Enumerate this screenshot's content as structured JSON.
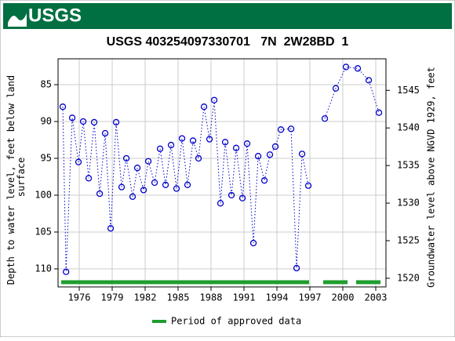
{
  "header": {
    "logo_text": "USGS"
  },
  "chart_data": {
    "type": "line",
    "title": "USGS 403254097330701   7N  2W28BD  1",
    "ylabel": [
      "Depth to water level, feet below land",
      "surface"
    ],
    "y2label": "Groundwater level above NGVD 1929, feet",
    "x": [
      1974.5,
      1974.8,
      1975.36,
      1975.93,
      1976.36,
      1976.86,
      1977.36,
      1977.86,
      1978.36,
      1978.86,
      1979.36,
      1979.86,
      1980.29,
      1980.86,
      1981.29,
      1981.86,
      1982.29,
      1982.86,
      1983.36,
      1983.86,
      1984.36,
      1984.86,
      1985.36,
      1985.86,
      1986.36,
      1986.86,
      1987.36,
      1987.86,
      1988.29,
      1988.86,
      1989.29,
      1989.86,
      1990.29,
      1990.86,
      1991.29,
      1991.86,
      1992.29,
      1992.86,
      1993.36,
      1993.86,
      1994.36,
      1995.29,
      1995.79,
      1996.29,
      1996.86,
      1997.6,
      1998.36,
      1999.36,
      2000.29,
      2001.36,
      2002.36,
      2003.29
    ],
    "series": [
      {
        "name": "Depth to water level",
        "color": "#0000cc",
        "values": [
          88.0,
          110.4,
          89.5,
          95.5,
          90.0,
          97.7,
          90.1,
          99.8,
          91.6,
          104.5,
          90.1,
          98.9,
          95.0,
          100.2,
          96.3,
          99.3,
          95.4,
          98.3,
          93.7,
          98.6,
          93.2,
          99.1,
          92.3,
          98.6,
          92.6,
          95.0,
          88.0,
          92.4,
          87.1,
          101.1,
          92.8,
          100.0,
          93.6,
          100.4,
          93.0,
          106.5,
          94.7,
          98.0,
          94.5,
          93.4,
          91.1,
          91.0,
          109.9,
          94.4,
          98.7,
          null,
          89.6,
          85.5,
          82.6,
          82.8,
          84.4,
          88.8
        ]
      }
    ],
    "approved": {
      "name": "Period of approved data",
      "color": "#1e9e2e",
      "periods": [
        [
          1974.36,
          1996.93
        ],
        [
          1998.21,
          2000.43
        ],
        [
          2001.21,
          2003.43
        ]
      ]
    },
    "xlim": [
      1974.07,
      2003.93
    ],
    "xticks": [
      1976,
      1979,
      1982,
      1985,
      1988,
      1991,
      1994,
      1997,
      2000,
      2003
    ],
    "ylim": [
      112.45,
      81.49
    ],
    "yticks": [
      85,
      90,
      95,
      100,
      105,
      110
    ],
    "y2lim": [
      1518.85,
      1549.2
    ],
    "y2ticks": [
      1520,
      1525,
      1530,
      1535,
      1540,
      1545
    ],
    "grid": true
  }
}
